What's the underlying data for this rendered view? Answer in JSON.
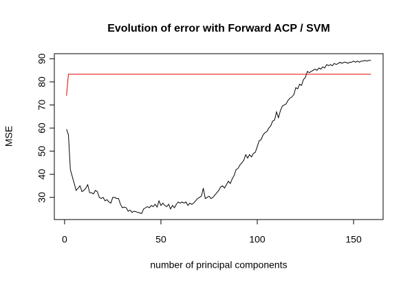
{
  "chart_data": {
    "type": "line",
    "title": "Evolution of error with Forward ACP / SVM",
    "x_label": "number of principal components",
    "y_label": "MSE",
    "xlim": [
      -5.32,
      165.32
    ],
    "xticks": [
      0,
      50,
      100,
      150
    ],
    "ylim": [
      20.4,
      92.2
    ],
    "yticks": [
      30,
      40,
      50,
      60,
      70,
      80,
      90
    ],
    "grid": false,
    "series": [
      {
        "color": "#000000",
        "x": [
          1,
          2,
          3,
          4,
          5,
          6,
          7,
          8,
          9,
          10,
          11,
          12,
          13,
          14,
          15,
          16,
          17,
          18,
          19,
          20,
          21,
          22,
          23,
          24,
          25,
          26,
          27,
          28,
          29,
          30,
          31,
          32,
          33,
          34,
          35,
          36,
          37,
          38,
          39,
          40,
          41,
          42,
          43,
          44,
          45,
          46,
          47,
          48,
          49,
          50,
          51,
          52,
          53,
          54,
          55,
          56,
          57,
          58,
          59,
          60,
          61,
          62,
          63,
          64,
          65,
          66,
          67,
          68,
          69,
          70,
          71,
          72,
          73,
          74,
          75,
          76,
          77,
          78,
          79,
          80,
          81,
          82,
          83,
          84,
          85,
          86,
          87,
          88,
          89,
          90,
          91,
          92,
          93,
          94,
          95,
          96,
          97,
          98,
          99,
          100,
          101,
          102,
          103,
          104,
          105,
          106,
          107,
          108,
          109,
          110,
          111,
          112,
          113,
          114,
          115,
          116,
          117,
          118,
          119,
          120,
          121,
          122,
          123,
          124,
          125,
          126,
          127,
          128,
          129,
          130,
          131,
          132,
          133,
          134,
          135,
          136,
          137,
          138,
          139,
          140,
          141,
          142,
          143,
          144,
          145,
          146,
          147,
          148,
          149,
          150,
          151,
          152,
          153,
          154,
          155,
          156,
          157,
          158,
          159
        ],
        "values": [
          59.5,
          57,
          42,
          39,
          36,
          33,
          34,
          35,
          32.5,
          33,
          34,
          35.5,
          32,
          32,
          31.5,
          33,
          32.5,
          30,
          29.5,
          30,
          28.5,
          29,
          28,
          27.5,
          30,
          30,
          29.5,
          29.5,
          27,
          25.5,
          25.8,
          25.5,
          24,
          24.5,
          23.5,
          24,
          23.8,
          23.5,
          23.3,
          23,
          25,
          25.5,
          26,
          25.5,
          26.5,
          26,
          27,
          25.8,
          28.5,
          26.5,
          27.5,
          26.5,
          26,
          27,
          25,
          26.5,
          25.5,
          27,
          28,
          27.5,
          28,
          27.5,
          28,
          26.5,
          27.5,
          27,
          27.5,
          28.5,
          29.5,
          30,
          30.5,
          34,
          29.5,
          30,
          30.5,
          29.5,
          30,
          31,
          32,
          33,
          34.5,
          35,
          34,
          35.5,
          37,
          36,
          38,
          39.5,
          42,
          42.5,
          44,
          45,
          46,
          48.5,
          47,
          48.5,
          47.5,
          49,
          49.5,
          52,
          54.5,
          55,
          57,
          58,
          58.5,
          60,
          61,
          63,
          63.5,
          67,
          64.5,
          67.5,
          69.5,
          70,
          70.5,
          72,
          73,
          73.5,
          74.5,
          77.5,
          77,
          79,
          78.5,
          81,
          82,
          84.5,
          84,
          84.5,
          85,
          85.5,
          85,
          86,
          85.5,
          86.5,
          86,
          87.5,
          87,
          87.5,
          87,
          88,
          87.5,
          88,
          88.5,
          88,
          88.5,
          88.5,
          88,
          88.5,
          88.5,
          89,
          88.5,
          89,
          88.5,
          89,
          89,
          89.3,
          89,
          89.3,
          89.3
        ]
      },
      {
        "color": "#df0000",
        "x": [
          1,
          2,
          159
        ],
        "values": [
          74,
          83.3,
          83.3
        ]
      }
    ]
  }
}
